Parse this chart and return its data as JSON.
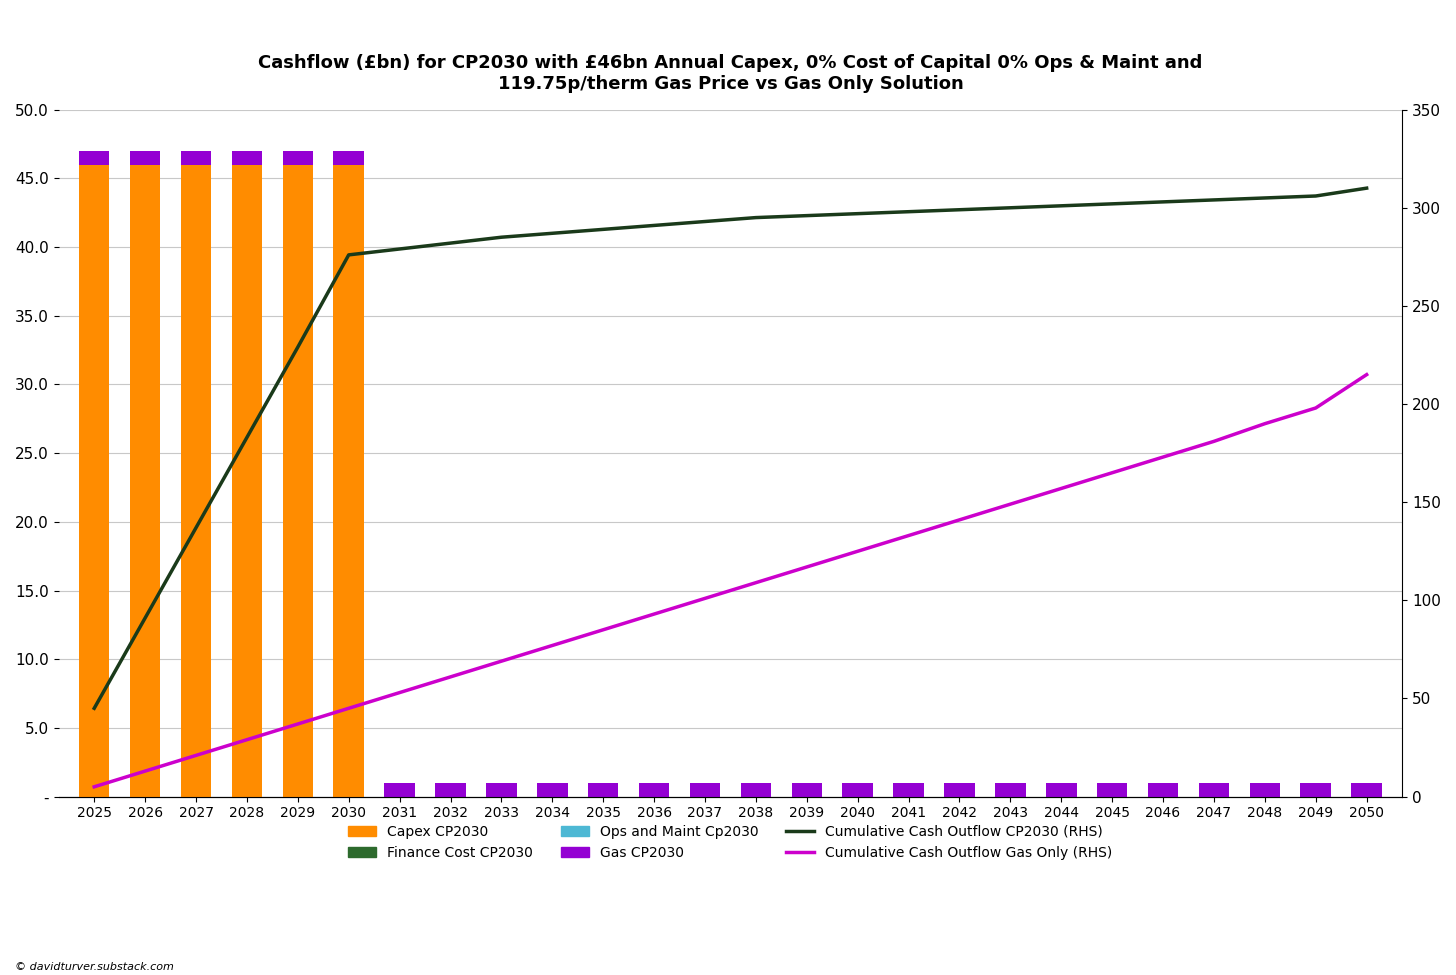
{
  "title": "Cashflow (£bn) for CP2030 with £46bn Annual Capex, 0% Cost of Capital 0% Ops & Maint and\n119.75p/therm Gas Price vs Gas Only Solution",
  "years": [
    2025,
    2026,
    2027,
    2028,
    2029,
    2030,
    2031,
    2032,
    2033,
    2034,
    2035,
    2036,
    2037,
    2038,
    2039,
    2040,
    2041,
    2042,
    2043,
    2044,
    2045,
    2046,
    2047,
    2048,
    2049,
    2050
  ],
  "capex_cp2030": [
    46,
    46,
    46,
    46,
    46,
    46,
    0,
    0,
    0,
    0,
    0,
    0,
    0,
    0,
    0,
    0,
    0,
    0,
    0,
    0,
    0,
    0,
    0,
    0,
    0,
    0
  ],
  "finance_cost_cp2030": [
    0,
    0,
    0,
    0,
    0,
    0,
    0,
    0,
    0,
    0,
    0,
    0,
    0,
    0,
    0,
    0,
    0,
    0,
    0,
    0,
    0,
    0,
    0,
    0,
    0,
    0
  ],
  "ops_maint_cp2030": [
    0,
    0,
    0,
    0,
    0,
    0,
    0,
    0,
    0,
    0,
    0,
    0,
    0,
    0,
    0,
    0,
    0,
    0,
    0,
    0,
    0,
    0,
    0,
    0,
    0,
    0
  ],
  "gas_cp2030": [
    1,
    1,
    1,
    1,
    1,
    1,
    1,
    1,
    1,
    1,
    1,
    1,
    1,
    1,
    1,
    1,
    1,
    1,
    1,
    1,
    1,
    1,
    1,
    1,
    1,
    1
  ],
  "cum_cf_cp2030_rhs": [
    45,
    91,
    137,
    183,
    229,
    276,
    279,
    282,
    285,
    287,
    289,
    291,
    293,
    295,
    296,
    297,
    298,
    299,
    300,
    301,
    302,
    303,
    304,
    305,
    306,
    310
  ],
  "cum_cf_gas_only_rhs": [
    5,
    13,
    21,
    29,
    37,
    45,
    53,
    61,
    69,
    77,
    85,
    93,
    101,
    109,
    117,
    125,
    133,
    141,
    149,
    157,
    165,
    173,
    181,
    190,
    198,
    215
  ],
  "colors": {
    "capex": "#FF8C00",
    "finance_cost": "#2d6a2d",
    "ops_maint": "#4db8d4",
    "gas": "#9400D3",
    "cum_cp2030": "#1a3a1a",
    "cum_gas": "#CC00CC",
    "background": "#ffffff",
    "grid": "#c8c8c8"
  },
  "ylim_left": [
    0,
    50
  ],
  "ylim_right": [
    0,
    350
  ],
  "yticks_left": [
    0,
    5.0,
    10.0,
    15.0,
    20.0,
    25.0,
    30.0,
    35.0,
    40.0,
    45.0,
    50.0
  ],
  "ytick_labels_left": [
    "-",
    "5.0",
    "10.0",
    "15.0",
    "20.0",
    "25.0",
    "30.0",
    "35.0",
    "40.0",
    "45.0",
    "50.0"
  ],
  "yticks_right": [
    0,
    50,
    100,
    150,
    200,
    250,
    300,
    350
  ],
  "watermark": "© davidturver.substack.com",
  "bar_width": 0.6
}
